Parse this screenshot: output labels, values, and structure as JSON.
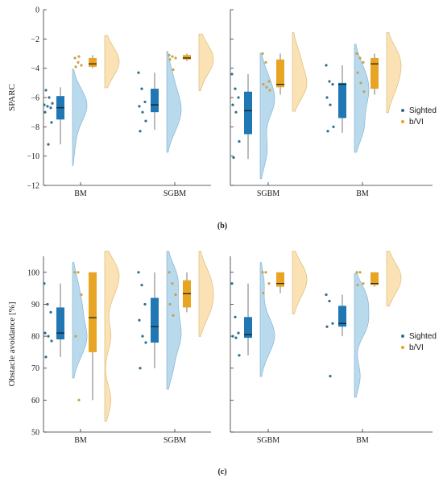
{
  "figure": {
    "top_caption": "(b)",
    "bottom_caption": "(c)"
  },
  "colors": {
    "sighted_box": "#1f77b4",
    "sighted_violin": "#b9d9ec",
    "sighted_dot": "#2e6f8e",
    "bvi_box": "#e8a423",
    "bvi_violin": "#fbe2b4",
    "bvi_dot": "#c9a24a"
  },
  "chart_data": [
    {
      "type": "violin-box",
      "ylabel": "SPARC",
      "ylim": [
        -12,
        0
      ],
      "yticks": [
        0,
        -2,
        -4,
        -6,
        -8,
        -10,
        -12
      ],
      "legend": {
        "placement": "right",
        "entries": [
          "Sighted",
          "b/VI"
        ]
      },
      "panels": [
        {
          "categories": [
            "BM",
            "SGBM"
          ],
          "groups": [
            {
              "category": "BM",
              "series": "Sighted",
              "box": {
                "whisker_low": -9.2,
                "q1": -7.5,
                "median": -6.7,
                "q3": -5.9,
                "whisker_high": -5.3
              },
              "points": [
                -6.5,
                -6.6,
                -6.7,
                -7.0,
                -9.2,
                -7.7,
                -5.5,
                -6.0,
                -6.4
              ]
            },
            {
              "category": "BM",
              "series": "b/VI",
              "box": {
                "whisker_low": -4.0,
                "q1": -3.9,
                "median": -3.7,
                "q3": -3.3,
                "whisker_high": -3.1
              },
              "points": [
                -3.3,
                -3.6,
                -3.8,
                -3.9,
                -3.2
              ]
            },
            {
              "category": "SGBM",
              "series": "Sighted",
              "box": {
                "whisker_low": -8.2,
                "q1": -7.0,
                "median": -6.5,
                "q3": -5.4,
                "whisker_high": -4.3
              },
              "points": [
                -4.3,
                -5.4,
                -6.3,
                -6.6,
                -7.0,
                -7.6,
                -8.3
              ]
            },
            {
              "category": "SGBM",
              "series": "b/VI",
              "box": {
                "whisker_low": -3.5,
                "q1": -3.4,
                "median": -3.3,
                "q3": -3.1,
                "whisker_high": -3.0
              },
              "points": [
                -3.1,
                -3.2,
                -3.3,
                -3.4,
                -4.1
              ]
            }
          ]
        },
        {
          "categories": [
            "SGBM",
            "BM"
          ],
          "groups": [
            {
              "category": "SGBM",
              "series": "Sighted",
              "box": {
                "whisker_low": -10.2,
                "q1": -8.5,
                "median": -6.9,
                "q3": -5.6,
                "whisker_high": -4.4
              },
              "points": [
                -4.4,
                -5.4,
                -6.0,
                -6.5,
                -7.0,
                -9.0,
                -10.1
              ]
            },
            {
              "category": "SGBM",
              "series": "b/VI",
              "box": {
                "whisker_low": -5.8,
                "q1": -5.3,
                "median": -5.1,
                "q3": -3.4,
                "whisker_high": -3.0
              },
              "points": [
                -3.0,
                -3.6,
                -4.9,
                -5.1,
                -5.3,
                -5.5
              ]
            },
            {
              "category": "BM",
              "series": "Sighted",
              "box": {
                "whisker_low": -8.4,
                "q1": -7.4,
                "median": -5.1,
                "q3": -5.0,
                "whisker_high": -3.8
              },
              "points": [
                -3.8,
                -4.9,
                -5.1,
                -6.0,
                -6.5,
                -8.0,
                -8.3
              ]
            },
            {
              "category": "BM",
              "series": "b/VI",
              "box": {
                "whisker_low": -5.8,
                "q1": -5.4,
                "median": -3.7,
                "q3": -3.3,
                "whisker_high": -3.0
              },
              "points": [
                -3.0,
                -3.3,
                -3.6,
                -4.3,
                -5.0,
                -5.6
              ]
            }
          ]
        }
      ]
    },
    {
      "type": "violin-box",
      "ylabel": "Obstacle avoidance [%]",
      "ylim": [
        50,
        105
      ],
      "yticks": [
        100,
        90,
        80,
        70,
        60,
        50
      ],
      "legend": {
        "placement": "right",
        "entries": [
          "Sighted",
          "b/VI"
        ]
      },
      "panels": [
        {
          "categories": [
            "BM",
            "SGBM"
          ],
          "groups": [
            {
              "category": "BM",
              "series": "Sighted",
              "box": {
                "whisker_low": 73.5,
                "q1": 79,
                "median": 81,
                "q3": 89,
                "whisker_high": 96.5
              },
              "points": [
                96.5,
                90,
                87.5,
                81,
                80,
                78.5,
                73.5
              ]
            },
            {
              "category": "BM",
              "series": "b/VI",
              "box": {
                "whisker_low": 60,
                "q1": 75,
                "median": 85.8,
                "q3": 100,
                "whisker_high": 100
              },
              "points": [
                100,
                100,
                93,
                80,
                60
              ]
            },
            {
              "category": "SGBM",
              "series": "Sighted",
              "box": {
                "whisker_low": 70,
                "q1": 78,
                "median": 83,
                "q3": 92,
                "whisker_high": 100
              },
              "points": [
                100,
                96,
                90,
                85,
                80,
                78,
                70
              ]
            },
            {
              "category": "SGBM",
              "series": "b/VI",
              "box": {
                "whisker_low": 87.5,
                "q1": 89,
                "median": 93.3,
                "q3": 97.5,
                "whisker_high": 100
              },
              "points": [
                100,
                96.5,
                93,
                90,
                86.5
              ]
            }
          ]
        },
        {
          "categories": [
            "SGBM",
            "BM"
          ],
          "groups": [
            {
              "category": "SGBM",
              "series": "Sighted",
              "box": {
                "whisker_low": 74,
                "q1": 79.5,
                "median": 80.5,
                "q3": 86,
                "whisker_high": 96.5
              },
              "points": [
                96.5,
                86,
                81,
                80,
                79.5,
                74
              ]
            },
            {
              "category": "SGBM",
              "series": "b/VI",
              "box": {
                "whisker_low": 93.5,
                "q1": 95.5,
                "median": 96.5,
                "q3": 100,
                "whisker_high": 100
              },
              "points": [
                100,
                100,
                96.5,
                93.5
              ]
            },
            {
              "category": "BM",
              "series": "Sighted",
              "box": {
                "whisker_low": 80,
                "q1": 83,
                "median": 84,
                "q3": 89.5,
                "whisker_high": 93
              },
              "points": [
                93,
                91,
                84,
                83,
                67.5
              ]
            },
            {
              "category": "BM",
              "series": "b/VI",
              "box": {
                "whisker_low": 95.5,
                "q1": 96,
                "median": 96.5,
                "q3": 100,
                "whisker_high": 100
              },
              "points": [
                100,
                100,
                96.5,
                96
              ]
            }
          ]
        }
      ]
    }
  ]
}
